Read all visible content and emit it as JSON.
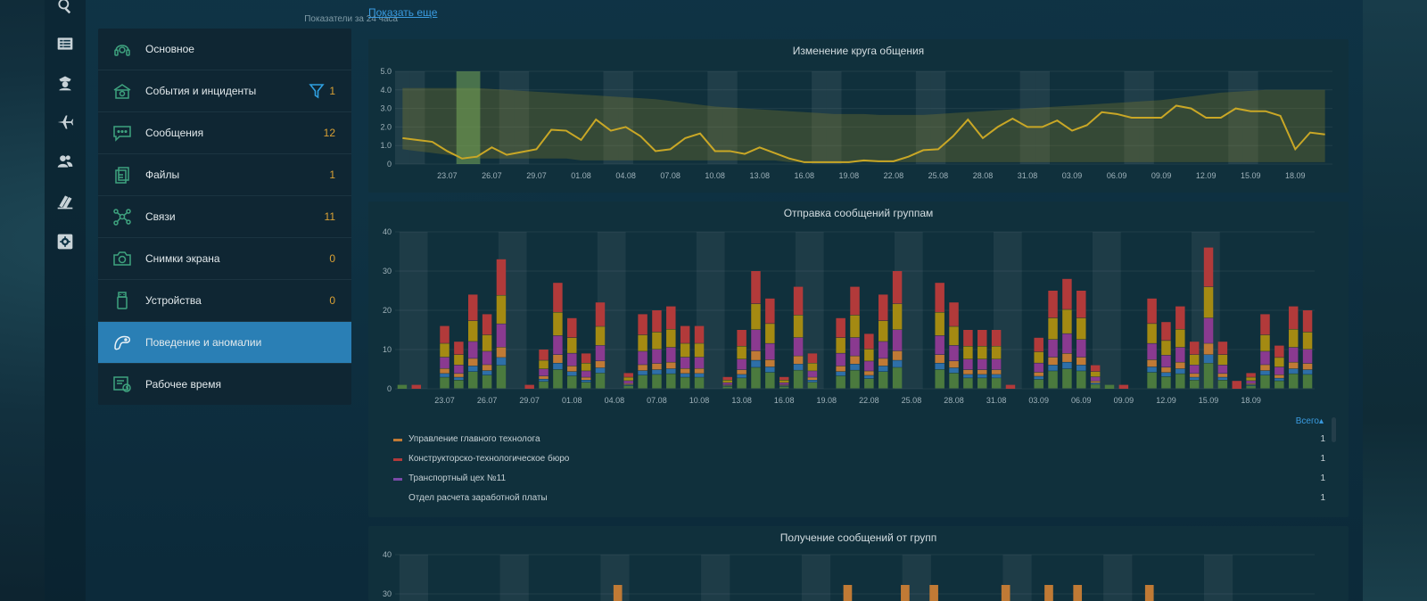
{
  "sidebar": {
    "icons": [
      "search-icon",
      "list-icon",
      "officer-icon",
      "airplane-icon",
      "users-icon",
      "books-icon",
      "gear-box-icon"
    ]
  },
  "menu": {
    "caption": "Показатели за 24 часа",
    "items": [
      {
        "label": "Основное",
        "count": "",
        "icon": "headset-icon"
      },
      {
        "label": "События и инциденты",
        "count": "1",
        "icon": "incident-icon",
        "filter": true
      },
      {
        "label": "Сообщения",
        "count": "12",
        "icon": "message-icon"
      },
      {
        "label": "Файлы",
        "count": "1",
        "icon": "files-icon"
      },
      {
        "label": "Связи",
        "count": "11",
        "icon": "network-icon"
      },
      {
        "label": "Снимки экрана",
        "count": "0",
        "icon": "camera-icon"
      },
      {
        "label": "Устройства",
        "count": "0",
        "icon": "usb-icon"
      },
      {
        "label": "Поведение и аномалии",
        "count": "",
        "icon": "behavior-icon",
        "active": true
      },
      {
        "label": "Рабочее время",
        "count": "",
        "icon": "worktime-icon"
      }
    ]
  },
  "main": {
    "show_more": "Показать еще"
  },
  "colors": {
    "accent": "#2a7fb5",
    "count": "#d9a034",
    "line": "#c9a726",
    "band": "#5b5a2a",
    "series": [
      "#4b7a3e",
      "#2e6fa8",
      "#c07a35",
      "#8a3a90",
      "#a48a12",
      "#b23a3a"
    ]
  },
  "chart_data": [
    {
      "type": "line",
      "title": "Изменение круга общения",
      "ylim": [
        0,
        5
      ],
      "yticks": [
        "0",
        "1.0",
        "2.0",
        "3.0",
        "4.0",
        "5.0"
      ],
      "xticks": [
        "23.07",
        "26.07",
        "29.07",
        "01.08",
        "04.08",
        "07.08",
        "10.08",
        "13.08",
        "16.08",
        "19.08",
        "22.08",
        "25.08",
        "28.08",
        "31.08",
        "03.09",
        "06.09",
        "09.09",
        "12.09",
        "15.09",
        "18.09"
      ],
      "start_date": "2020-07-20",
      "values": [
        1.4,
        1.3,
        1.2,
        0.7,
        0.3,
        0.4,
        0.9,
        0.5,
        0.65,
        0.8,
        1.85,
        1.8,
        1.3,
        2.4,
        1.8,
        2.0,
        1.5,
        0.7,
        0.8,
        1.4,
        1.65,
        0.7,
        0.7,
        0.55,
        0.9,
        0.6,
        0.3,
        0.1,
        0.1,
        0.1,
        0.1,
        0.2,
        0.15,
        0.15,
        0.4,
        0.75,
        0.8,
        1.5,
        2.4,
        1.4,
        2.0,
        2.45,
        2.0,
        2.0,
        2.35,
        1.8,
        2.1,
        2.8,
        2.7,
        2.5,
        2.5,
        2.5,
        3.15,
        3.0,
        2.5,
        2.5,
        3.0,
        2.85,
        2.85,
        2.6,
        0.8,
        1.7,
        1.6
      ],
      "band_upper": [
        4.1,
        4.1,
        4.1,
        4.1,
        4.1,
        4.1,
        4.05,
        4.0,
        3.95,
        3.9,
        3.85,
        3.8,
        3.75,
        3.7,
        3.65,
        3.6,
        3.55,
        3.5,
        3.4,
        3.3,
        3.2,
        3.1,
        3.05,
        3.0,
        2.95,
        2.9,
        2.85,
        2.8,
        2.75,
        2.7,
        2.7,
        2.7,
        2.65,
        2.65,
        2.65,
        2.65,
        2.7,
        2.75,
        2.8,
        2.85,
        2.9,
        2.95,
        3.0,
        3.05,
        3.1,
        3.15,
        3.2,
        3.25,
        3.3,
        3.35,
        3.4,
        3.45,
        3.55,
        3.65,
        3.75,
        3.85,
        3.9,
        3.95,
        4.0,
        4.0,
        4.0,
        4.0,
        4.0
      ],
      "band_lower": [
        0.8,
        0.7,
        0.6,
        0.5,
        0.4,
        0.3,
        0.3,
        0.3,
        0.3,
        0.3,
        0.3,
        0.3,
        0.2,
        0.2,
        0.2,
        0.2,
        0.2,
        0.2,
        0.2,
        0.2,
        0.2,
        0.2,
        0.2,
        0.2,
        0.2,
        0.2,
        0.1,
        0.1,
        0.1,
        0.1,
        0.1,
        0.1,
        0.1,
        0.1,
        0.1,
        0.1,
        0.1,
        0.1,
        0.1,
        0.1,
        0.1,
        0.1,
        0.1,
        0.1,
        0.1,
        0.1,
        0.1,
        0.1,
        0.1,
        0.1,
        0.1,
        0.1,
        0.1,
        0.1,
        0.1,
        0.1,
        0.1,
        0.1,
        0.1,
        0.1,
        0.1,
        0.1,
        0.1
      ],
      "highlight_index": 4,
      "weekend_indices": [
        0,
        1,
        7,
        8,
        14,
        15,
        21,
        22,
        28,
        29,
        35,
        36,
        42,
        43,
        49,
        50,
        56,
        57
      ]
    },
    {
      "type": "bar",
      "stacked": true,
      "title": "Отправка сообщений группам",
      "ylim": [
        0,
        40
      ],
      "yticks": [
        "0",
        "10",
        "20",
        "30",
        "40"
      ],
      "xticks": [
        "23.07",
        "26.07",
        "29.07",
        "01.08",
        "04.08",
        "07.08",
        "10.08",
        "13.08",
        "16.08",
        "19.08",
        "22.08",
        "25.08",
        "28.08",
        "31.08",
        "03.09",
        "06.09",
        "09.09",
        "12.09",
        "15.09",
        "18.09"
      ],
      "totals": [
        1,
        1,
        0,
        16,
        12,
        24,
        19,
        33,
        0,
        1,
        10,
        27,
        18,
        9,
        22,
        0,
        4,
        19,
        20,
        21,
        16,
        16,
        0,
        3,
        15,
        30,
        23,
        3,
        26,
        9,
        0,
        18,
        26,
        14,
        24,
        30,
        0,
        0,
        27,
        22,
        15,
        15,
        15,
        1,
        0,
        13,
        25,
        28,
        25,
        6,
        1,
        1,
        0,
        23,
        17,
        21,
        12,
        36,
        12,
        2,
        4,
        19,
        11,
        21,
        20
      ],
      "legend": [
        {
          "name": "Управление главного технолога",
          "count": "1",
          "color": "#c07a35"
        },
        {
          "name": "Конструкторско-технологическое бюро",
          "count": "1",
          "color": "#b23a3a"
        },
        {
          "name": "Транспортный цех №11",
          "count": "1",
          "color": "#7a4aa8"
        },
        {
          "name": "Отдел расчета заработной платы",
          "count": "1",
          "color": "#10303c"
        }
      ],
      "legend_toggle": "Всего"
    },
    {
      "type": "bar",
      "title": "Получение сообщений от групп",
      "ylim": [
        0,
        40
      ],
      "yticks": [
        "30",
        "40"
      ],
      "visible_bar_indices": [
        15,
        31,
        35,
        37,
        42,
        45,
        47,
        52
      ]
    }
  ]
}
